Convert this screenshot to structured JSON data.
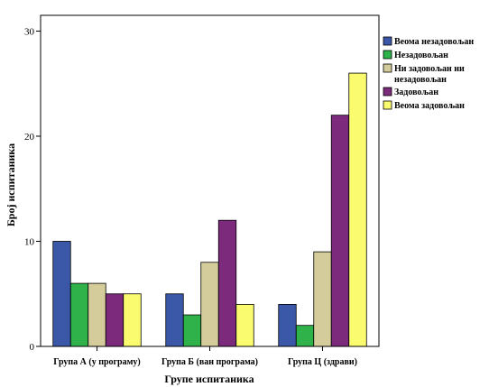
{
  "chart_data": {
    "type": "bar",
    "categories": [
      "Група А (у програму)",
      "Група Б (ван програма)",
      "Група Ц (здрави)"
    ],
    "series": [
      {
        "name": "Веома незадовољан",
        "color": "#3b58a8",
        "values": [
          10,
          5,
          4
        ]
      },
      {
        "name": "Незадовољан",
        "color": "#2fb24a",
        "values": [
          6,
          3,
          2
        ]
      },
      {
        "name": "Ни задовољан ни незадовољан",
        "color": "#d4cc9a",
        "values": [
          6,
          8,
          9
        ]
      },
      {
        "name": "Задовољан",
        "color": "#7b2a7c",
        "values": [
          5,
          12,
          22
        ]
      },
      {
        "name": "Веома задовољан",
        "color": "#fbfb70",
        "values": [
          5,
          4,
          26
        ]
      }
    ],
    "xlabel": "Групе испитаника",
    "ylabel": "Број испитаника",
    "ylim": [
      0,
      31.5
    ],
    "yticks": [
      0,
      10,
      20,
      30
    ],
    "grid": false,
    "legend": "right"
  }
}
